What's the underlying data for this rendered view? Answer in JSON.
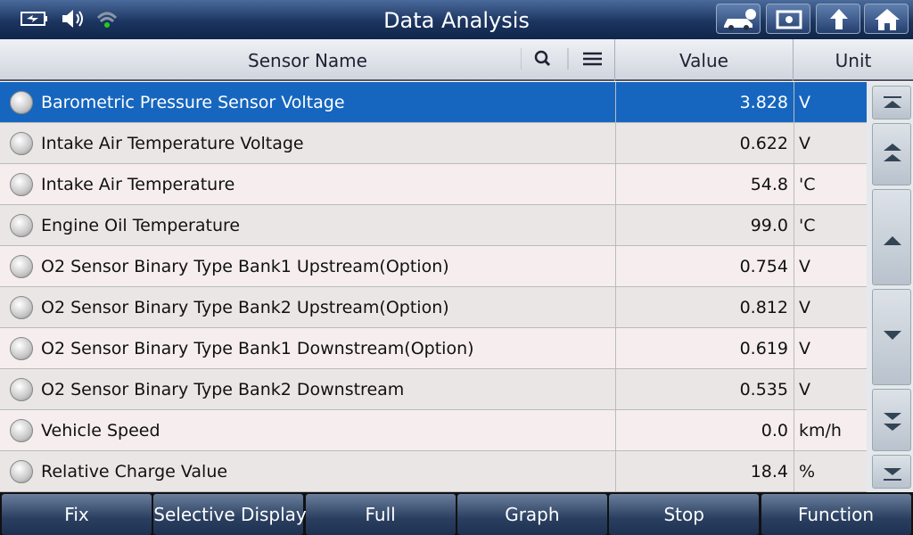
{
  "header": {
    "title": "Data Analysis"
  },
  "table": {
    "columns": [
      "Sensor Name",
      "Value",
      "Unit"
    ],
    "rows": [
      [
        "Barometric Pressure Sensor Voltage",
        "3.828",
        "V"
      ],
      [
        "Intake Air Temperature Voltage",
        "0.622",
        "V"
      ],
      [
        "Intake Air Temperature",
        "54.8",
        "'C"
      ],
      [
        "Engine Oil Temperature",
        "99.0",
        "'C"
      ],
      [
        "O2 Sensor Binary Type Bank1 Upstream(Option)",
        "0.754",
        "V"
      ],
      [
        "O2 Sensor Binary Type Bank2 Upstream(Option)",
        "0.812",
        "V"
      ],
      [
        "O2 Sensor Binary Type Bank1 Downstream(Option)",
        "0.619",
        "V"
      ],
      [
        "O2 Sensor Binary Type Bank2 Downstream",
        "0.535",
        "V"
      ],
      [
        "Vehicle Speed",
        "0.0",
        "km/h"
      ],
      [
        "Relative Charge Value",
        "18.4",
        "%"
      ]
    ]
  },
  "toolbar": {
    "buttons": [
      "Fix",
      "Selective Display",
      "Full",
      "Graph",
      "Stop",
      "Function"
    ]
  }
}
